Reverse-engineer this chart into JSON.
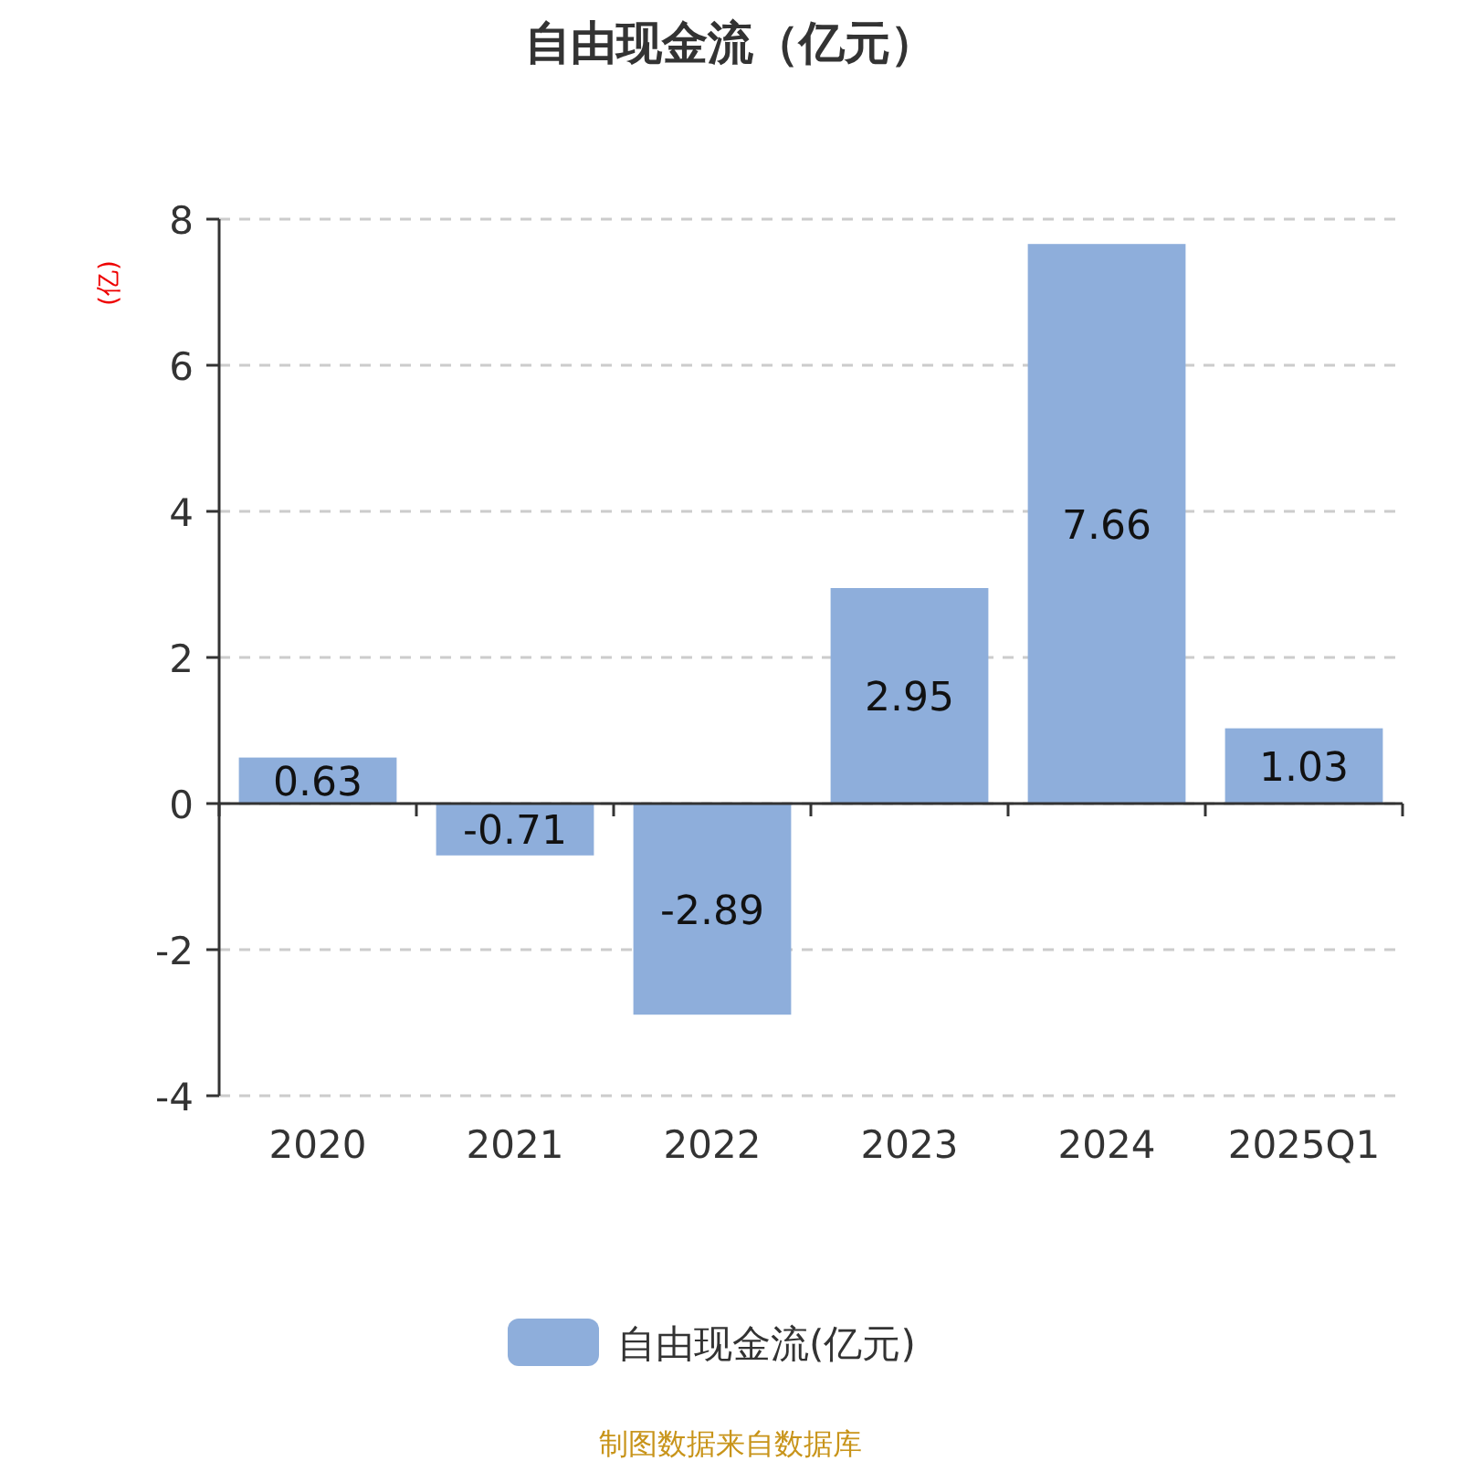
{
  "chart_data": {
    "type": "bar",
    "title": "自由现金流（亿元）",
    "ylabel": "(亿)",
    "categories": [
      "2020",
      "2021",
      "2022",
      "2023",
      "2024",
      "2025Q1"
    ],
    "series": [
      {
        "name": "自由现金流(亿元)",
        "color": "#8eaedb",
        "values": [
          0.63,
          -0.71,
          -2.89,
          2.95,
          7.66,
          1.03
        ]
      }
    ],
    "ylim": [
      -4,
      8
    ],
    "yticks": [
      -4,
      -2,
      0,
      2,
      4,
      6,
      8
    ],
    "grid": "y",
    "legend": "bottom",
    "data_labels": true,
    "annotations": [
      "制图数据来自数据库"
    ]
  }
}
